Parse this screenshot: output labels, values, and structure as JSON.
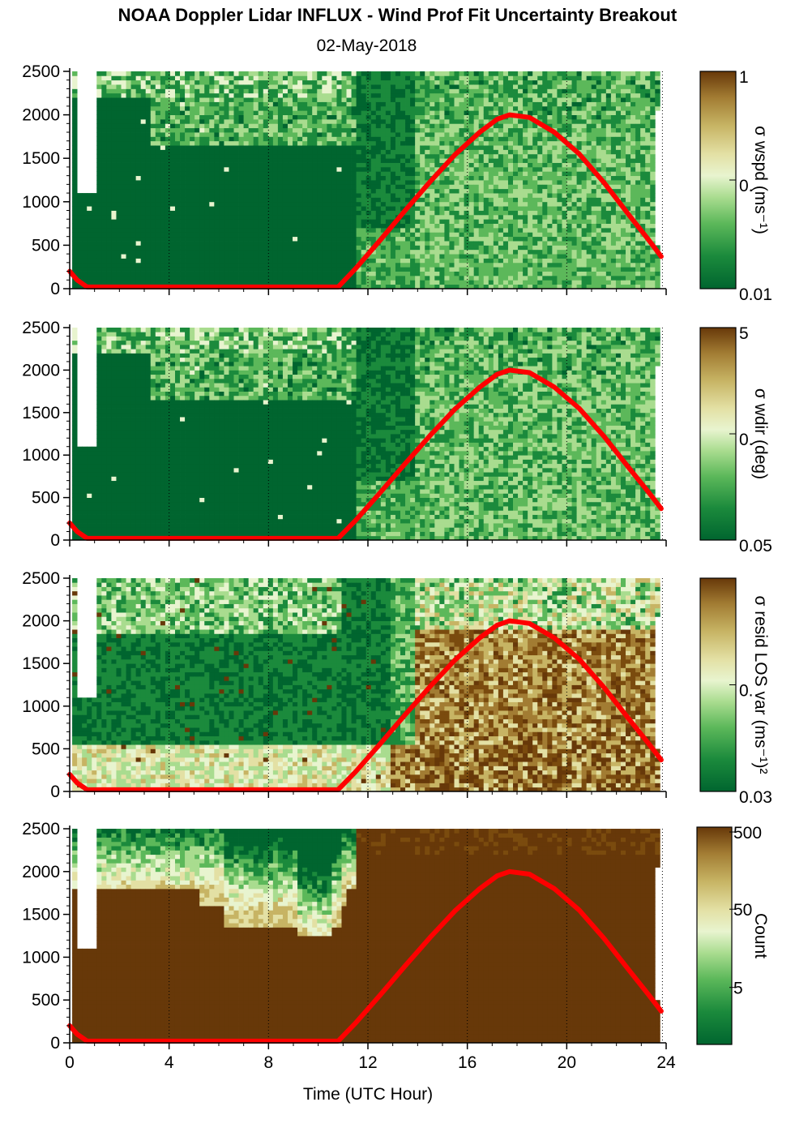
{
  "title": "NOAA Doppler Lidar INFLUX - Wind Prof Fit Uncertainty Breakout",
  "date": "02-May-2018",
  "colors": {
    "scale": [
      "#00652f",
      "#1b8a3c",
      "#5cb85a",
      "#a9dc8f",
      "#e8f4cf",
      "#e3e0a4",
      "#c7b464",
      "#a27c33",
      "#7a4b0e",
      "#673809"
    ],
    "sun_curve": "#ff0000"
  },
  "chart_data": [
    {
      "type": "heatmap",
      "name": "panel-wspd",
      "xlim": [
        0,
        24
      ],
      "ylim": [
        0,
        2500
      ],
      "yticks": [
        "0",
        "500",
        "1000",
        "1500",
        "2000",
        "2500"
      ],
      "xticks": [
        "0",
        "4",
        "8",
        "12",
        "16",
        "20",
        "24"
      ],
      "colorbar_label": "σ wspd (ms⁻¹)",
      "colorbar_ticks": [
        "1",
        "0.",
        "0.01"
      ],
      "colorbar_log": true
    },
    {
      "type": "heatmap",
      "name": "panel-wdir",
      "xlim": [
        0,
        24
      ],
      "ylim": [
        0,
        2500
      ],
      "yticks": [
        "0",
        "500",
        "1000",
        "1500",
        "2000",
        "2500"
      ],
      "xticks": [
        "0",
        "4",
        "8",
        "12",
        "16",
        "20",
        "24"
      ],
      "colorbar_label": "σ wdir (deg)",
      "colorbar_ticks": [
        "5",
        "0.",
        "0.05"
      ],
      "colorbar_log": true
    },
    {
      "type": "heatmap",
      "name": "panel-resid",
      "xlim": [
        0,
        24
      ],
      "ylim": [
        0,
        2500
      ],
      "yticks": [
        "0",
        "500",
        "1000",
        "1500",
        "2000",
        "2500"
      ],
      "xticks": [
        "0",
        "4",
        "8",
        "12",
        "16",
        "20",
        "24"
      ],
      "colorbar_label": "σ resid LOS var (ms⁻¹)²",
      "colorbar_ticks": [
        "",
        "0.",
        "0.03"
      ],
      "colorbar_log": true
    },
    {
      "type": "heatmap",
      "name": "panel-count",
      "xlim": [
        0,
        24
      ],
      "ylim": [
        0,
        2500
      ],
      "yticks": [
        "0",
        "500",
        "1000",
        "1500",
        "2000",
        "2500"
      ],
      "xticks": [
        "0",
        "4",
        "8",
        "12",
        "16",
        "20",
        "24"
      ],
      "xlabel": "Time (UTC Hour)",
      "colorbar_label": "Count",
      "colorbar_ticks": [
        "500",
        "50",
        "5"
      ],
      "colorbar_log": true
    }
  ],
  "sun_elevation_curve": {
    "x": [
      0,
      0.3,
      0.7,
      10.8,
      11.5,
      12.5,
      13.5,
      14.5,
      15.5,
      16.5,
      17.2,
      17.7,
      18.5,
      19.5,
      20.5,
      21.5,
      22.5,
      23.3,
      23.8
    ],
    "y": [
      200,
      100,
      20,
      20,
      230,
      560,
      900,
      1230,
      1540,
      1800,
      1950,
      2000,
      1970,
      1800,
      1550,
      1220,
      850,
      560,
      370
    ]
  }
}
